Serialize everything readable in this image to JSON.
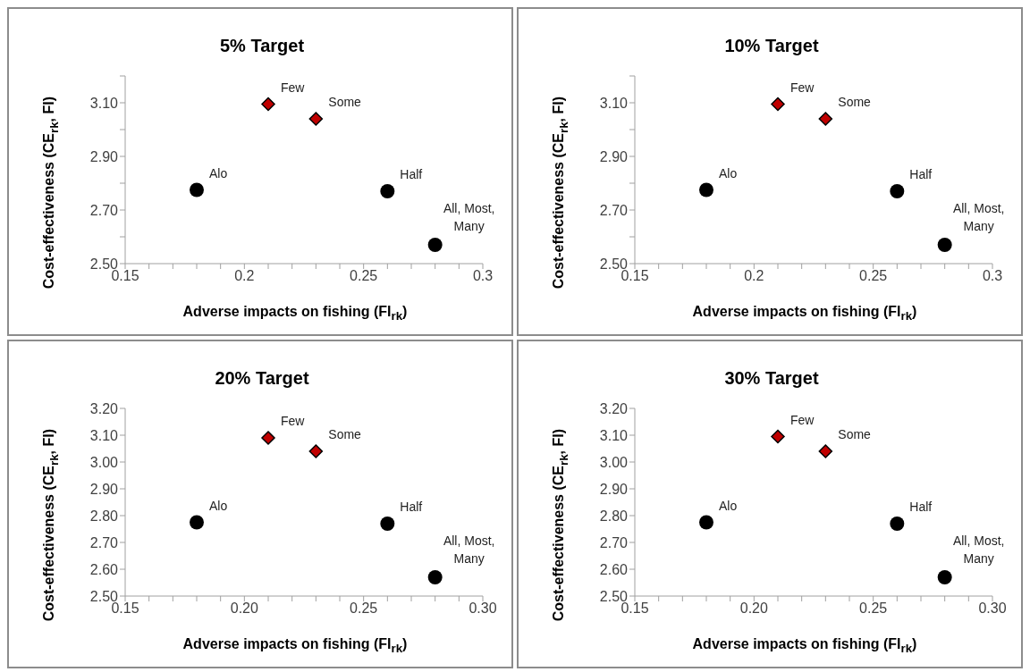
{
  "chart_data": [
    {
      "type": "scatter",
      "title": "5% Target",
      "xlabel": "Adverse impacts on fishing (FI$_{rk}$)",
      "ylabel": "Cost-effectiveness (CE$_{rk}$, FI)",
      "xlim": [
        0.15,
        0.3
      ],
      "ylim": [
        2.5,
        3.2
      ],
      "xticks": [
        0.15,
        {
          "value": 0.16,
          "label": null
        },
        {
          "value": 0.17,
          "label": null
        },
        {
          "value": 0.18,
          "label": null
        },
        {
          "value": 0.19,
          "label": null
        },
        0.2,
        {
          "value": 0.21,
          "label": null
        },
        {
          "value": 0.22,
          "label": null
        },
        {
          "value": 0.23,
          "label": null
        },
        {
          "value": 0.24,
          "label": null
        },
        0.25,
        {
          "value": 0.26,
          "label": null
        },
        {
          "value": 0.27,
          "label": null
        },
        {
          "value": 0.28,
          "label": null
        },
        {
          "value": 0.29,
          "label": null
        },
        0.3
      ],
      "yticks": [
        {
          "value": 2.5,
          "label": "2.50"
        },
        {
          "value": 2.6,
          "label": null
        },
        {
          "value": 2.7,
          "label": "2.70"
        },
        {
          "value": 2.8,
          "label": null
        },
        {
          "value": 2.9,
          "label": "2.90"
        },
        {
          "value": 3.0,
          "label": null
        },
        {
          "value": 3.1,
          "label": "3.10"
        },
        {
          "value": 3.2,
          "label": null
        }
      ],
      "series": [
        {
          "color": "#000000",
          "marker": "circle",
          "x": [
            0.18,
            0.26,
            0.28
          ],
          "values": [
            2.775,
            2.77,
            2.57
          ]
        },
        {
          "color": "#c00000",
          "marker": "diamond",
          "x": [
            0.21,
            0.23
          ],
          "values": [
            3.095,
            3.04
          ]
        }
      ],
      "annotations": [
        {
          "text": "Alo",
          "x": 0.18,
          "y": 2.775
        },
        {
          "text": "Half",
          "x": 0.26,
          "y": 2.77
        },
        {
          "text": "All, Most,\nMany",
          "x": 0.28,
          "y": 2.57
        },
        {
          "text": "Few",
          "x": 0.21,
          "y": 3.095
        },
        {
          "text": "Some",
          "x": 0.23,
          "y": 3.04
        }
      ]
    },
    {
      "type": "scatter",
      "title": "10% Target",
      "xlabel": "Adverse impacts on fishing (FI$_{rk}$)",
      "ylabel": "Cost-effectiveness (CE$_{rk}$, FI)",
      "xlim": [
        0.15,
        0.3
      ],
      "ylim": [
        2.5,
        3.2
      ],
      "xticks": [
        0.15,
        {
          "value": 0.16,
          "label": null
        },
        {
          "value": 0.17,
          "label": null
        },
        {
          "value": 0.18,
          "label": null
        },
        {
          "value": 0.19,
          "label": null
        },
        0.2,
        {
          "value": 0.21,
          "label": null
        },
        {
          "value": 0.22,
          "label": null
        },
        {
          "value": 0.23,
          "label": null
        },
        {
          "value": 0.24,
          "label": null
        },
        0.25,
        {
          "value": 0.26,
          "label": null
        },
        {
          "value": 0.27,
          "label": null
        },
        {
          "value": 0.28,
          "label": null
        },
        {
          "value": 0.29,
          "label": null
        },
        0.3
      ],
      "yticks": [
        {
          "value": 2.5,
          "label": "2.50"
        },
        {
          "value": 2.6,
          "label": null
        },
        {
          "value": 2.7,
          "label": "2.70"
        },
        {
          "value": 2.8,
          "label": null
        },
        {
          "value": 2.9,
          "label": "2.90"
        },
        {
          "value": 3.0,
          "label": null
        },
        {
          "value": 3.1,
          "label": "3.10"
        },
        {
          "value": 3.2,
          "label": null
        }
      ],
      "series": [
        {
          "color": "#000000",
          "marker": "circle",
          "x": [
            0.18,
            0.26,
            0.28
          ],
          "values": [
            2.775,
            2.77,
            2.57
          ]
        },
        {
          "color": "#c00000",
          "marker": "diamond",
          "x": [
            0.21,
            0.23
          ],
          "values": [
            3.095,
            3.04
          ]
        }
      ],
      "annotations": [
        {
          "text": "Alo",
          "x": 0.18,
          "y": 2.775
        },
        {
          "text": "Half",
          "x": 0.26,
          "y": 2.77
        },
        {
          "text": "All, Most,\nMany",
          "x": 0.28,
          "y": 2.57
        },
        {
          "text": "Few",
          "x": 0.21,
          "y": 3.095
        },
        {
          "text": "Some",
          "x": 0.23,
          "y": 3.04
        }
      ]
    },
    {
      "type": "scatter",
      "title": "20% Target",
      "xlabel": "Adverse impacts on fishing (FI$_{rk}$)",
      "ylabel": "Cost-effectiveness (CE$_{rk}$, FI)",
      "xlim": [
        0.15,
        0.3
      ],
      "ylim": [
        2.5,
        3.2
      ],
      "xticks": [
        0.15,
        {
          "value": 0.16,
          "label": null
        },
        {
          "value": 0.17,
          "label": null
        },
        {
          "value": 0.18,
          "label": null
        },
        {
          "value": 0.19,
          "label": null
        },
        {
          "value": 0.2,
          "label": "0.20"
        },
        {
          "value": 0.21,
          "label": null
        },
        {
          "value": 0.22,
          "label": null
        },
        {
          "value": 0.23,
          "label": null
        },
        {
          "value": 0.24,
          "label": null
        },
        0.25,
        {
          "value": 0.26,
          "label": null
        },
        {
          "value": 0.27,
          "label": null
        },
        {
          "value": 0.28,
          "label": null
        },
        {
          "value": 0.29,
          "label": null
        },
        {
          "value": 0.3,
          "label": "0.30"
        }
      ],
      "yticks": [
        {
          "value": 2.5,
          "label": "2.50"
        },
        {
          "value": 2.6,
          "label": "2.60"
        },
        {
          "value": 2.7,
          "label": "2.70"
        },
        {
          "value": 2.8,
          "label": "2.80"
        },
        {
          "value": 2.9,
          "label": "2.90"
        },
        {
          "value": 3.0,
          "label": "3.00"
        },
        {
          "value": 3.1,
          "label": "3.10"
        },
        {
          "value": 3.2,
          "label": "3.20"
        }
      ],
      "series": [
        {
          "color": "#000000",
          "marker": "circle",
          "x": [
            0.18,
            0.26,
            0.28
          ],
          "values": [
            2.775,
            2.77,
            2.57
          ]
        },
        {
          "color": "#c00000",
          "marker": "diamond",
          "x": [
            0.21,
            0.23
          ],
          "values": [
            3.09,
            3.04
          ]
        }
      ],
      "annotations": [
        {
          "text": "Alo",
          "x": 0.18,
          "y": 2.775
        },
        {
          "text": "Half",
          "x": 0.26,
          "y": 2.77
        },
        {
          "text": "All, Most,\nMany",
          "x": 0.28,
          "y": 2.57
        },
        {
          "text": "Few",
          "x": 0.21,
          "y": 3.09
        },
        {
          "text": "Some",
          "x": 0.23,
          "y": 3.04
        }
      ]
    },
    {
      "type": "scatter",
      "title": "30% Target",
      "xlabel": "Adverse impacts on fishing (FI$_{rk}$)",
      "ylabel": "Cost-effectiveness (CE$_{rk}$, FI)",
      "xlim": [
        0.15,
        0.3
      ],
      "ylim": [
        2.5,
        3.2
      ],
      "xticks": [
        0.15,
        {
          "value": 0.16,
          "label": null
        },
        {
          "value": 0.17,
          "label": null
        },
        {
          "value": 0.18,
          "label": null
        },
        {
          "value": 0.19,
          "label": null
        },
        {
          "value": 0.2,
          "label": "0.20"
        },
        {
          "value": 0.21,
          "label": null
        },
        {
          "value": 0.22,
          "label": null
        },
        {
          "value": 0.23,
          "label": null
        },
        {
          "value": 0.24,
          "label": null
        },
        0.25,
        {
          "value": 0.26,
          "label": null
        },
        {
          "value": 0.27,
          "label": null
        },
        {
          "value": 0.28,
          "label": null
        },
        {
          "value": 0.29,
          "label": null
        },
        {
          "value": 0.3,
          "label": "0.30"
        }
      ],
      "yticks": [
        {
          "value": 2.5,
          "label": "2.50"
        },
        {
          "value": 2.6,
          "label": "2.60"
        },
        {
          "value": 2.7,
          "label": "2.70"
        },
        {
          "value": 2.8,
          "label": "2.80"
        },
        {
          "value": 2.9,
          "label": "2.90"
        },
        {
          "value": 3.0,
          "label": "3.00"
        },
        {
          "value": 3.1,
          "label": "3.10"
        },
        {
          "value": 3.2,
          "label": "3.20"
        }
      ],
      "series": [
        {
          "color": "#000000",
          "marker": "circle",
          "x": [
            0.18,
            0.26,
            0.28
          ],
          "values": [
            2.775,
            2.77,
            2.57
          ]
        },
        {
          "color": "#c00000",
          "marker": "diamond",
          "x": [
            0.21,
            0.23
          ],
          "values": [
            3.095,
            3.04
          ]
        }
      ],
      "annotations": [
        {
          "text": "Alo",
          "x": 0.18,
          "y": 2.775
        },
        {
          "text": "Half",
          "x": 0.26,
          "y": 2.77
        },
        {
          "text": "All, Most,\nMany",
          "x": 0.28,
          "y": 2.57
        },
        {
          "text": "Few",
          "x": 0.21,
          "y": 3.095
        },
        {
          "text": "Some",
          "x": 0.23,
          "y": 3.04
        }
      ]
    }
  ]
}
